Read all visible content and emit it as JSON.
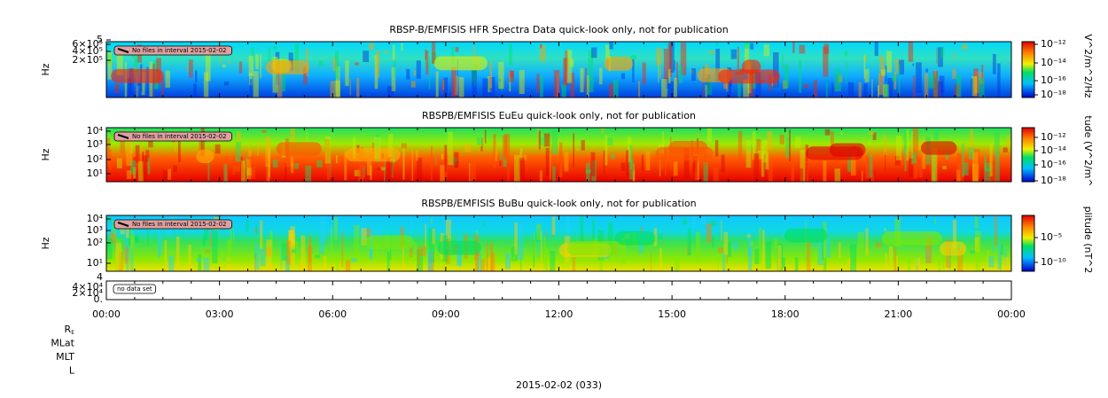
{
  "panels": [
    {
      "title": "RBSP-B/EMFISIS  HFR Spectra Data quick-look only, not for publication",
      "ylabel": "Hz",
      "yticks": [
        "5",
        "6×10⁵",
        "4×10⁵",
        "2×10⁵"
      ],
      "colorbar_label": "V^2/m^2/Hz",
      "colorbar_ticks": [
        "10⁻¹²",
        "10⁻¹⁴",
        "10⁻¹⁶",
        "10⁻¹⁸"
      ],
      "note": "No files in interval 2015-02-02"
    },
    {
      "title": "RBSPB/EMFISIS  EuEu quick-look only, not for publication",
      "ylabel": "Hz",
      "yticks": [
        "10⁴",
        "10³",
        "10²",
        "10¹"
      ],
      "colorbar_label": "tude (V^2/m^",
      "colorbar_ticks": [
        "10⁻¹²",
        "10⁻¹⁴",
        "10⁻¹⁶",
        "10⁻¹⁸"
      ],
      "note": "No files in interval 2015-02-02"
    },
    {
      "title": "RBSPB/EMFISIS  BuBu quick-look only, not for publication",
      "ylabel": "Hz",
      "yticks": [
        "10⁴",
        "10³",
        "10²",
        "10¹"
      ],
      "colorbar_label": "plitude (nT^2",
      "colorbar_ticks": [
        "10⁻⁵",
        "10⁻¹⁰"
      ],
      "note": "No files in interval 2015-02-02"
    }
  ],
  "empty_panel": {
    "yticks": [
      "4",
      "4×10⁴",
      "2×10⁴",
      "0."
    ],
    "note": "no data set"
  },
  "xticks": [
    "00:00",
    "03:00",
    "06:00",
    "09:00",
    "12:00",
    "15:00",
    "18:00",
    "21:00",
    "00:00"
  ],
  "ephemeris_labels": [
    {
      "label": "R",
      "sub": "E"
    },
    {
      "label": "MLat"
    },
    {
      "label": "MLT"
    },
    {
      "label": "L"
    }
  ],
  "date": "2015-02-02 (033)"
}
